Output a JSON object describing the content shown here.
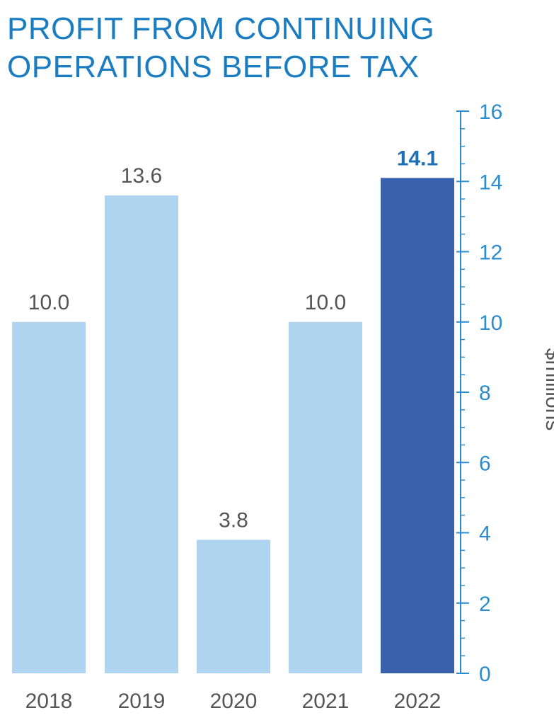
{
  "chart_data": {
    "type": "bar",
    "title_lines": [
      "PROFIT FROM CONTINUING",
      "OPERATIONS BEFORE TAX"
    ],
    "categories": [
      "2018",
      "2019",
      "2020",
      "2021",
      "2022"
    ],
    "values": [
      10.0,
      13.6,
      3.8,
      10.0,
      14.1
    ],
    "value_labels": [
      "10.0",
      "13.6",
      "3.8",
      "10.0",
      "14.1"
    ],
    "highlight_index": 4,
    "ylabel": "$millions",
    "ylim": [
      0,
      16
    ],
    "yticks": [
      "0",
      "2",
      "4",
      "6",
      "8",
      "10",
      "12",
      "14",
      "16"
    ],
    "y_axis_position": "right",
    "grid": false,
    "legend": "none",
    "colors": {
      "title": "#1a7cc1",
      "bar": "#afd4ef",
      "bar_highlight": "#3a62ac",
      "axis": "#2a8ccf",
      "value_label": "#555555",
      "value_label_highlight": "#1f6fb5",
      "category_label": "#555555",
      "ylabel": "#555555"
    }
  }
}
